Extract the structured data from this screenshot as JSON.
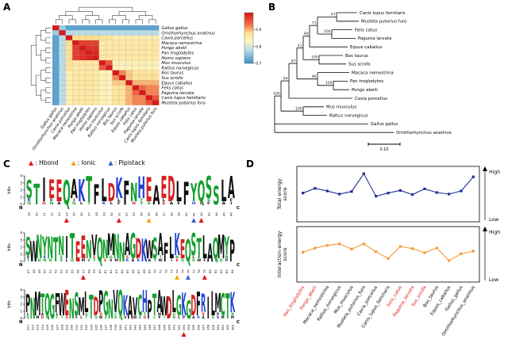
{
  "panels": {
    "a": {
      "label": "A"
    },
    "b": {
      "label": "B"
    },
    "c": {
      "label": "C"
    },
    "d": {
      "label": "D"
    }
  },
  "chart_data": [
    {
      "type": "heatmap",
      "title": "ACE2 sequence similarity matrix",
      "categories": [
        "Gallus gallus",
        "Ornithorhynchus anatinus",
        "Cavia porcellus",
        "Macaca nemestrina",
        "Pongo abelii",
        "Pan troglodytes",
        "Homo sapiens",
        "Mus musculus",
        "Rattus norvegicus",
        "Bos taurus",
        "Sus scrofa",
        "Equus caballus",
        "Felis catus",
        "Paguma larvata",
        "Canis lupus familiaris",
        "Mustela putorius furo"
      ],
      "matrix": [
        [
          1.0,
          0.76,
          0.72,
          0.72,
          0.72,
          0.72,
          0.72,
          0.72,
          0.72,
          0.72,
          0.72,
          0.72,
          0.72,
          0.72,
          0.72,
          0.72
        ],
        [
          0.76,
          1.0,
          0.78,
          0.78,
          0.78,
          0.78,
          0.78,
          0.78,
          0.78,
          0.78,
          0.78,
          0.78,
          0.78,
          0.78,
          0.78,
          0.78
        ],
        [
          0.72,
          0.78,
          1.0,
          0.88,
          0.88,
          0.88,
          0.88,
          0.87,
          0.87,
          0.85,
          0.85,
          0.85,
          0.85,
          0.85,
          0.85,
          0.85
        ],
        [
          0.72,
          0.78,
          0.88,
          1.0,
          0.97,
          0.97,
          0.97,
          0.86,
          0.86,
          0.86,
          0.86,
          0.86,
          0.86,
          0.86,
          0.86,
          0.86
        ],
        [
          0.72,
          0.78,
          0.88,
          0.97,
          1.0,
          0.98,
          0.98,
          0.86,
          0.86,
          0.86,
          0.86,
          0.86,
          0.86,
          0.86,
          0.86,
          0.86
        ],
        [
          0.72,
          0.78,
          0.88,
          0.97,
          0.98,
          1.0,
          0.99,
          0.86,
          0.86,
          0.86,
          0.86,
          0.86,
          0.86,
          0.86,
          0.86,
          0.86
        ],
        [
          0.72,
          0.78,
          0.88,
          0.97,
          0.98,
          0.99,
          1.0,
          0.86,
          0.86,
          0.86,
          0.86,
          0.86,
          0.86,
          0.86,
          0.86,
          0.86
        ],
        [
          0.72,
          0.78,
          0.87,
          0.86,
          0.86,
          0.86,
          0.86,
          1.0,
          0.95,
          0.84,
          0.84,
          0.84,
          0.84,
          0.84,
          0.84,
          0.84
        ],
        [
          0.72,
          0.78,
          0.87,
          0.86,
          0.86,
          0.86,
          0.86,
          0.95,
          1.0,
          0.84,
          0.84,
          0.84,
          0.84,
          0.84,
          0.84,
          0.84
        ],
        [
          0.72,
          0.78,
          0.85,
          0.86,
          0.86,
          0.86,
          0.86,
          0.84,
          0.84,
          1.0,
          0.92,
          0.89,
          0.87,
          0.87,
          0.87,
          0.87
        ],
        [
          0.72,
          0.78,
          0.85,
          0.86,
          0.86,
          0.86,
          0.86,
          0.84,
          0.84,
          0.92,
          1.0,
          0.89,
          0.87,
          0.87,
          0.87,
          0.87
        ],
        [
          0.72,
          0.78,
          0.85,
          0.86,
          0.86,
          0.86,
          0.86,
          0.84,
          0.84,
          0.89,
          0.89,
          1.0,
          0.9,
          0.9,
          0.9,
          0.9
        ],
        [
          0.72,
          0.78,
          0.85,
          0.86,
          0.86,
          0.86,
          0.86,
          0.84,
          0.84,
          0.87,
          0.87,
          0.9,
          1.0,
          0.94,
          0.92,
          0.92
        ],
        [
          0.72,
          0.78,
          0.85,
          0.86,
          0.86,
          0.86,
          0.86,
          0.84,
          0.84,
          0.87,
          0.87,
          0.9,
          0.94,
          1.0,
          0.92,
          0.92
        ],
        [
          0.72,
          0.78,
          0.85,
          0.86,
          0.86,
          0.86,
          0.86,
          0.84,
          0.84,
          0.87,
          0.87,
          0.9,
          0.92,
          0.92,
          1.0,
          0.95
        ],
        [
          0.72,
          0.78,
          0.85,
          0.86,
          0.86,
          0.86,
          0.86,
          0.84,
          0.84,
          0.87,
          0.87,
          0.9,
          0.92,
          0.92,
          0.95,
          1.0
        ]
      ],
      "legend_ticks": [
        "0.9",
        "0.8",
        "0.7"
      ],
      "colorscale": [
        [
          0.7,
          "#3f8fc5"
        ],
        [
          0.78,
          "#b9dcea"
        ],
        [
          0.83,
          "#fdf5c3"
        ],
        [
          0.88,
          "#fee090"
        ],
        [
          0.93,
          "#f46d43"
        ],
        [
          1.0,
          "#d7191c"
        ]
      ]
    },
    {
      "type": "tree",
      "scale_bar_label": "0.10",
      "root": {
        "len": 0,
        "children": [
          {
            "bs": 100,
            "len": 8,
            "children": [
              {
                "bs": 94,
                "len": 10,
                "children": [
                  {
                    "bs": 87,
                    "len": 10,
                    "children": [
                      {
                        "bs": 41,
                        "len": 8,
                        "children": [
                          {
                            "bs": 99,
                            "len": 8,
                            "children": [
                              {
                                "bs": 73,
                                "len": 10,
                                "children": [
                                  {
                                    "bs": 47,
                                    "len": 24,
                                    "children": [
                                      {
                                        "name": "Canis lupus familiaris",
                                        "len": 26
                                      },
                                      {
                                        "name": "Mustela putorius furo",
                                        "len": 28
                                      }
                                    ]
                                  },
                                  {
                                    "bs": 100,
                                    "len": 18,
                                    "children": [
                                      {
                                        "name": "Felis catus",
                                        "len": 26
                                      },
                                      {
                                        "name": "Paguma larvata",
                                        "len": 30
                                      }
                                    ]
                                  }
                                ]
                              },
                              {
                                "name": "Equus caballus",
                                "len": 48
                              }
                            ]
                          },
                          {
                            "bs": 100,
                            "len": 20,
                            "children": [
                              {
                                "name": "Bos taurus",
                                "len": 30
                              },
                              {
                                "name": "Sus scrofa",
                                "len": 34
                              }
                            ]
                          }
                        ]
                      },
                      {
                        "bs": 96,
                        "len": 26,
                        "children": [
                          {
                            "name": "Macaca nemestrina",
                            "len": 40
                          },
                          {
                            "bs": 100,
                            "len": 20,
                            "children": [
                              {
                                "name": "Pan troglodytes",
                                "len": 18
                              },
                              {
                                "name": "Pongo abelii",
                                "len": 20
                              }
                            ]
                          }
                        ]
                      }
                    ]
                  },
                  {
                    "name": "Cavia porcellus",
                    "len": 80
                  }
                ]
              },
              {
                "bs": 100,
                "len": 28,
                "children": [
                  {
                    "name": "Mus musculus",
                    "len": 26
                  },
                  {
                    "name": "Rattus norvegicus",
                    "len": 30
                  }
                ]
              }
            ]
          },
          {
            "name": "Gallus gallus",
            "len": 118
          },
          {
            "name": "Ornithorhynchus anatinus",
            "len": 150
          }
        ]
      }
    },
    {
      "type": "logo",
      "legend": [
        {
          "label": ": Hbond",
          "color": "#e01616"
        },
        {
          "label": ": Ionic",
          "color": "#f5a800"
        },
        {
          "label": ": Pipistack",
          "color": "#3c64c8"
        }
      ],
      "ylabel": "bits",
      "yticks": [
        "4",
        "3",
        "2",
        "1",
        "0"
      ],
      "n_label": "N",
      "c_label": "C",
      "rows": [
        {
          "start": 19,
          "seq": "STIEEQAKTFLDKFNHEAEDLFYQSSLA",
          "markers": {
            "24": "h",
            "31": "h",
            "35": "i",
            "41": "p",
            "42": "h"
          }
        },
        {
          "start": 47,
          "seq": "SWNYNTNITEENVQNMNNAGDKWSAFLKEQSTLAQMYP",
          "markers": {
            "57": "h",
            "74": "i",
            "76": "p",
            "79": "h"
          }
        },
        {
          "start": 321,
          "seq": "PNMTQGFWENSMLTDPGNVQKAVCHPTAWDLGKGDFRILMCTK",
          "markers": {
            "353": "h"
          }
        }
      ]
    },
    {
      "type": "line",
      "categories": [
        "Pan_troglodytes",
        "Pongo_abelii",
        "Macaca_nemestrina",
        "Rattus_norvegicus",
        "Mus_musculus",
        "Mustela_putorius_furo",
        "Cavia_porcellus",
        "Canis_lupus_familiaris",
        "Felis_catus",
        "Paguma_larvata",
        "Sus_scrofa",
        "Bos_taurus",
        "Equus_caballus",
        "Gallus_gallus",
        "Ornithorhynchus_anatinus"
      ],
      "red_categories": [
        "Pan_troglodytes",
        "Pongo_abelii",
        "Felis_catus",
        "Paguma_larvata",
        "Sus_scrofa"
      ],
      "axis_right": {
        "high": "High",
        "low": "Low"
      },
      "ylim": [
        0,
        10
      ],
      "charts": [
        {
          "ylabel": "Total energy score",
          "color": "#1f2f9a",
          "values": [
            5.2,
            6.1,
            5.6,
            5.0,
            5.5,
            8.9,
            4.6,
            5.2,
            5.7,
            4.9,
            6.0,
            5.3,
            5.0,
            5.6,
            8.3
          ]
        },
        {
          "ylabel": "Interaction energy score",
          "color": "#f29b38",
          "values": [
            5.4,
            6.2,
            6.7,
            7.0,
            6.0,
            7.0,
            5.5,
            4.2,
            6.5,
            6.1,
            5.3,
            6.2,
            3.8,
            5.1,
            5.6
          ]
        }
      ]
    }
  ]
}
